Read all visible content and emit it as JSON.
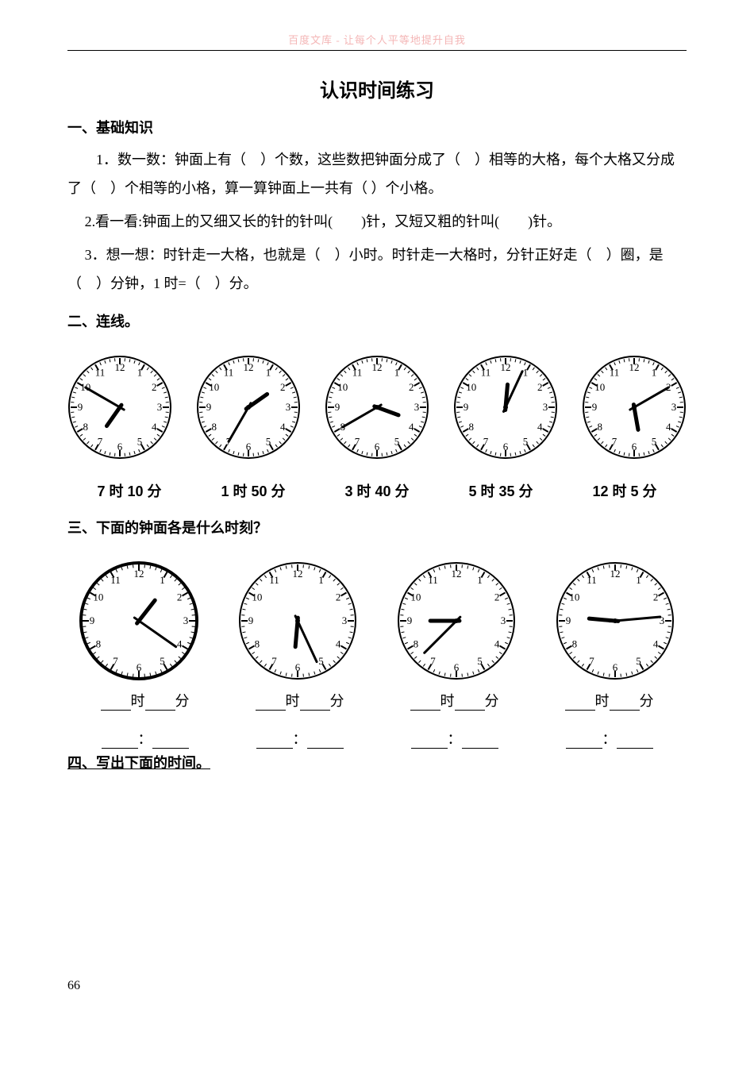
{
  "watermark": "百度文库 - 让每个人平等地提升自我",
  "title": "认识时间练习",
  "section1": {
    "heading": "一、基础知识",
    "q1": "1．数一数：钟面上有（　）个数，这些数把钟面分成了（　）相等的大格，每个大格又分成了（　）个相等的小格，算一算钟面上一共有（ ）个小格。",
    "q2": "2.看一看:钟面上的又细又长的针的针叫(　　)针，又短又粗的针叫(　　)针。",
    "q3": "3．想一想：时针走一大格，也就是（　）小时。时针走一大格时，分针正好走（　）圈，是（　）分钟，1 时=（　）分。"
  },
  "section2": {
    "heading": "二、连线。",
    "clock_style": {
      "size": 132,
      "face_fill": "#ffffff",
      "stroke": "#000000",
      "num_font": 13
    },
    "clocks": [
      {
        "hour_angle": 215,
        "minute_angle": 300
      },
      {
        "hour_angle": 55,
        "minute_angle": 210
      },
      {
        "hour_angle": 110,
        "minute_angle": 240
      },
      {
        "hour_angle": 5,
        "minute_angle": 25
      },
      {
        "hour_angle": 170,
        "minute_angle": 60
      }
    ],
    "labels": [
      "7 时 10 分",
      "1 时 50 分",
      "3 时 40 分",
      "5 时 35 分",
      "12 时 5 分"
    ]
  },
  "section3": {
    "heading": "三、下面的钟面各是什么时刻？",
    "clock_style": {
      "size": 150,
      "face_fill": "#ffffff",
      "stroke": "#000000",
      "num_font": 13
    },
    "clocks": [
      {
        "hour_angle": 38,
        "minute_angle": 125,
        "bold_face": true
      },
      {
        "hour_angle": 185,
        "minute_angle": 155
      },
      {
        "hour_angle": 270,
        "minute_angle": 225
      },
      {
        "hour_angle": 275,
        "minute_angle": 85
      }
    ],
    "fill_label_hour": "时",
    "fill_label_min": "分",
    "colon": "："
  },
  "section4": {
    "heading": "四、写出下面的时间。"
  },
  "page_number": "66"
}
